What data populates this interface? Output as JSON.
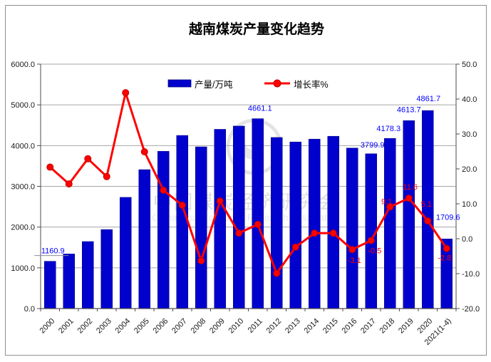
{
  "title": "越南煤炭产量变化趋势",
  "legend": {
    "bars_label": "产量/万吨",
    "line_label": "增长率%"
  },
  "watermark": {
    "cn": "中国煤炭经济研究会",
    "en": "China Coal Economic Research Association"
  },
  "axes": {
    "left_ticks": [
      "6000.0",
      "5000.0",
      "4000.0",
      "3000.0",
      "2000.0",
      "1000.0",
      "0.0"
    ],
    "right_ticks": [
      "50.0",
      "40.0",
      "30.0",
      "20.0",
      "10.0",
      "0.0",
      "-10.0",
      "-20.0"
    ]
  },
  "colors": {
    "bar": "#0101CD",
    "bar_border": "#000080",
    "line": "#FE0000",
    "marker_stroke": "#C00000",
    "bar_label": "#0000FF",
    "line_label": "#FF0000",
    "grid": "#A6A6A6",
    "axis": "#4D4D4D",
    "tick_label": "#1A1A1A",
    "frame_border": "#909090",
    "watermark": "#E0E0E0",
    "watermark_en": "#E9E9E9"
  },
  "chart_data": {
    "type": "bar",
    "title": "越南煤炭产量变化趋势",
    "categories": [
      "2000",
      "2001",
      "2002",
      "2003",
      "2004",
      "2005",
      "2006",
      "2007",
      "2008",
      "2009",
      "2010",
      "2011",
      "2012",
      "2013",
      "2014",
      "2015",
      "2016",
      "2017",
      "2018",
      "2019",
      "2020",
      "2021(1-4)"
    ],
    "series": [
      {
        "name": "产量/万吨",
        "type": "bar",
        "axis": "left",
        "values": [
          1160.9,
          1340,
          1645,
          1940,
          2730,
          3410,
          3860,
          4250,
          3970,
          4400,
          4480,
          4661.1,
          4200,
          4090,
          4160,
          4230,
          3940,
          3799.9,
          4178.3,
          4613.7,
          4861.7,
          1709.6
        ]
      },
      {
        "name": "增长率%",
        "type": "line",
        "axis": "right",
        "values": [
          20.5,
          15.7,
          22.9,
          17.8,
          41.8,
          24.9,
          13.9,
          9.6,
          -6.3,
          10.8,
          1.6,
          4.1,
          -9.9,
          -2.4,
          1.6,
          1.6,
          -3.1,
          -0.5,
          9.1,
          11.6,
          5.1,
          -2.8
        ]
      }
    ],
    "bar_point_labels": {
      "0": "1160.9",
      "11": "4661.1",
      "17": "3799.9",
      "18": "4178.3",
      "19": "4613.7",
      "20": "4861.7",
      "21": "1709.6"
    },
    "line_point_labels": {
      "16": "-3.1",
      "17": "-0.5",
      "18": "9.1",
      "19": "11.6",
      "20": "5.1",
      "21": "-2.8"
    },
    "ylabel_left": "产量/万吨",
    "ylabel_right": "增长率%",
    "left_axis_range": [
      0,
      6000
    ],
    "right_axis_range": [
      -20,
      50
    ],
    "grid": true,
    "legend_position": "top-center"
  }
}
